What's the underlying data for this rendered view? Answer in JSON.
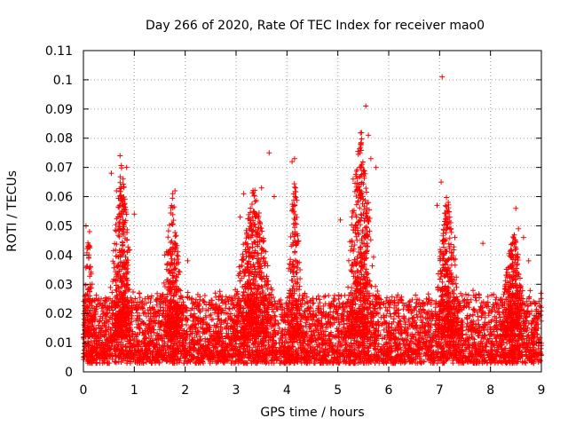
{
  "chart_data": {
    "type": "scatter",
    "title": "Day 266 of 2020, Rate Of TEC Index for receiver mao0",
    "xlabel": "GPS time / hours",
    "ylabel": "ROTI / TECUs",
    "xlim": [
      0,
      9
    ],
    "ylim": [
      0,
      0.11
    ],
    "grid": true,
    "marker": "+",
    "color": "#ff0000",
    "x_ticks": [
      "0",
      "1",
      "2",
      "3",
      "4",
      "5",
      "6",
      "7",
      "8",
      "9"
    ],
    "y_ticks": [
      "0",
      "0.01",
      "0.02",
      "0.03",
      "0.04",
      "0.05",
      "0.06",
      "0.07",
      "0.08",
      "0.09",
      "0.1",
      "0.11"
    ],
    "notable_points": [
      {
        "x": 0.05,
        "y": 0.05
      },
      {
        "x": 0.12,
        "y": 0.048
      },
      {
        "x": 0.55,
        "y": 0.068
      },
      {
        "x": 0.72,
        "y": 0.074
      },
      {
        "x": 0.85,
        "y": 0.07
      },
      {
        "x": 0.65,
        "y": 0.062
      },
      {
        "x": 0.78,
        "y": 0.066
      },
      {
        "x": 1.0,
        "y": 0.054
      },
      {
        "x": 1.8,
        "y": 0.062
      },
      {
        "x": 1.6,
        "y": 0.04
      },
      {
        "x": 2.05,
        "y": 0.038
      },
      {
        "x": 3.08,
        "y": 0.053
      },
      {
        "x": 3.15,
        "y": 0.061
      },
      {
        "x": 3.3,
        "y": 0.047
      },
      {
        "x": 3.5,
        "y": 0.063
      },
      {
        "x": 3.65,
        "y": 0.075
      },
      {
        "x": 3.75,
        "y": 0.06
      },
      {
        "x": 4.1,
        "y": 0.072
      },
      {
        "x": 4.15,
        "y": 0.073
      },
      {
        "x": 5.05,
        "y": 0.052
      },
      {
        "x": 5.3,
        "y": 0.066
      },
      {
        "x": 5.45,
        "y": 0.078
      },
      {
        "x": 5.55,
        "y": 0.091
      },
      {
        "x": 5.6,
        "y": 0.081
      },
      {
        "x": 5.65,
        "y": 0.073
      },
      {
        "x": 5.75,
        "y": 0.07
      },
      {
        "x": 6.95,
        "y": 0.057
      },
      {
        "x": 7.03,
        "y": 0.065
      },
      {
        "x": 7.05,
        "y": 0.101
      },
      {
        "x": 7.2,
        "y": 0.049
      },
      {
        "x": 7.3,
        "y": 0.046
      },
      {
        "x": 7.85,
        "y": 0.044
      },
      {
        "x": 8.5,
        "y": 0.056
      },
      {
        "x": 8.55,
        "y": 0.049
      },
      {
        "x": 8.65,
        "y": 0.046
      },
      {
        "x": 8.75,
        "y": 0.038
      }
    ],
    "activity_bursts": [
      {
        "center": 0.1,
        "width": 0.12,
        "peak": 0.05,
        "density": 90
      },
      {
        "center": 0.75,
        "width": 0.28,
        "peak": 0.072,
        "density": 380
      },
      {
        "center": 1.75,
        "width": 0.25,
        "peak": 0.062,
        "density": 280
      },
      {
        "center": 3.35,
        "width": 0.45,
        "peak": 0.065,
        "density": 520
      },
      {
        "center": 4.15,
        "width": 0.18,
        "peak": 0.072,
        "density": 170
      },
      {
        "center": 5.45,
        "width": 0.35,
        "peak": 0.085,
        "density": 460
      },
      {
        "center": 7.15,
        "width": 0.3,
        "peak": 0.062,
        "density": 320
      },
      {
        "center": 8.45,
        "width": 0.3,
        "peak": 0.05,
        "density": 300
      }
    ],
    "background_noise": {
      "min": 0.004,
      "typical": 0.012,
      "max_typical": 0.026,
      "points": 5200
    }
  }
}
